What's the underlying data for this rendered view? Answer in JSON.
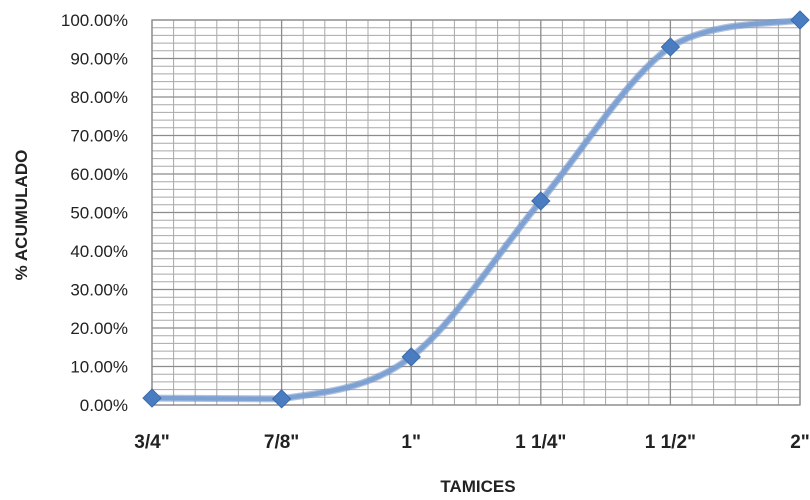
{
  "chart_data": {
    "type": "line",
    "title": "",
    "xlabel": "TAMICES",
    "ylabel": "% ACUMULADO",
    "categories": [
      "3/4\"",
      "7/8\"",
      "1\"",
      "1 1/4\"",
      "1 1/2\"",
      "2\""
    ],
    "y_ticks": [
      "0.00%",
      "10.00%",
      "20.00%",
      "30.00%",
      "40.00%",
      "50.00%",
      "60.00%",
      "70.00%",
      "80.00%",
      "90.00%",
      "100.00%"
    ],
    "ylim": [
      0,
      100
    ],
    "grid": true,
    "legend": "none",
    "smooth": true,
    "series": [
      {
        "values": [
          1.8,
          1.6,
          12.5,
          53.0,
          93.0,
          100.0
        ]
      }
    ],
    "colors": {
      "line": "#7ea1d3",
      "marker": "#4a7cc2",
      "grid": "#a8a8a8"
    }
  }
}
